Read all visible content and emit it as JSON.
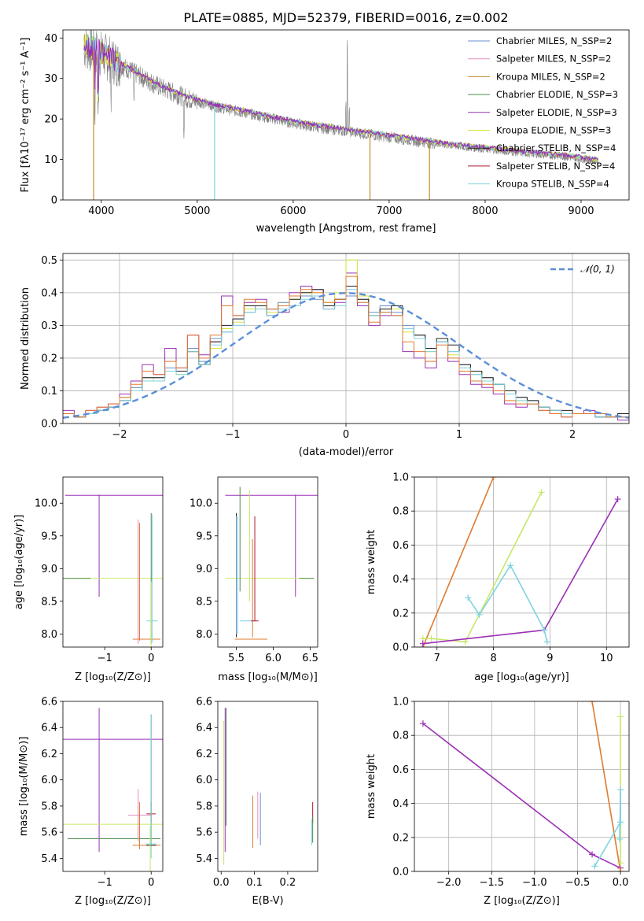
{
  "figure_title": "PLATE=0885, MJD=52379, FIBERID=0016, z=0.002",
  "colors": {
    "Chabrier MILES": "#6a8fd0",
    "Salpeter MILES": "#e38fc6",
    "Kroupa MILES": "#c8892a",
    "Chabrier ELODIE": "#4d8b4d",
    "Salpeter ELODIE": "#9b30b5",
    "Kroupa ELODIE": "#d6e33a",
    "Chabrier STELIB": "#222222",
    "Salpeter STELIB": "#b0182a",
    "Kroupa STELIB": "#7fd3e0",
    "data": "#808080",
    "normal": "#5b8fd9",
    "orange": "#e07a30",
    "lime": "#c6e86a"
  },
  "chart_data": [
    {
      "id": "spectrum",
      "type": "line",
      "xlabel": "wavelength [Angstrom, rest frame]",
      "ylabel": "Flux [fλ10⁻¹⁷ erg cm⁻² s⁻¹ A⁻¹]",
      "xlim": [
        3600,
        9500
      ],
      "ylim": [
        0,
        42
      ],
      "xticks": [
        "4000",
        "5000",
        "6000",
        "7000",
        "8000",
        "9000"
      ],
      "yticks": [
        "0",
        "10",
        "20",
        "30",
        "40"
      ],
      "legend_position": "top-right",
      "legend": [
        "Chabrier MILES, N_SSP=2",
        "Salpeter MILES, N_SSP=2",
        "Kroupa MILES, N_SSP=2",
        "Chabrier ELODIE, N_SSP=3",
        "Salpeter ELODIE, N_SSP=3",
        "Kroupa ELODIE, N_SSP=3",
        "Chabrier STELIB, N_SSP=4",
        "Salpeter STELIB, N_SSP=4",
        "Kroupa STELIB, N_SSP=4"
      ],
      "continuum": {
        "x": [
          3820,
          4000,
          4300,
          4600,
          4900,
          5200,
          5500,
          5800,
          6100,
          6400,
          6700,
          7000,
          7300,
          7600,
          8000,
          8400,
          8800,
          9180
        ],
        "y": [
          38,
          36,
          32,
          28,
          25,
          23,
          21.5,
          20,
          18.5,
          17.5,
          16.5,
          15.5,
          14.5,
          13.5,
          12.5,
          11.5,
          10.7,
          9.5
        ]
      },
      "dips": [
        {
          "x": 3920,
          "y": 0,
          "series": "Kroupa MILES"
        },
        {
          "x": 5180,
          "y": 0,
          "series": "Kroupa STELIB"
        },
        {
          "x": 6800,
          "y": 0,
          "series": "Kroupa MILES"
        },
        {
          "x": 7420,
          "y": 0,
          "series": "Kroupa MILES"
        }
      ]
    },
    {
      "id": "residuals",
      "type": "line",
      "xlabel": "(data-model)/error",
      "ylabel": "Normed distribution",
      "xlim": [
        -2.5,
        2.5
      ],
      "ylim": [
        0,
        0.52
      ],
      "xticks": [
        "−2",
        "−1",
        "0",
        "1",
        "2"
      ],
      "yticks": [
        "0.0",
        "0.1",
        "0.2",
        "0.3",
        "0.4",
        "0.5"
      ],
      "legend_position": "top-right",
      "legend": [
        "𝒩(0, 1)"
      ],
      "bin_width": 0.1,
      "series": [
        {
          "series": "Salpeter ELODIE",
          "values": [
            0.04,
            0.02,
            0.04,
            0.05,
            0.06,
            0.09,
            0.13,
            0.18,
            0.15,
            0.23,
            0.17,
            0.27,
            0.21,
            0.25,
            0.39,
            0.33,
            0.37,
            0.38,
            0.35,
            0.34,
            0.4,
            0.42,
            0.41,
            0.35,
            0.37,
            0.46,
            0.36,
            0.3,
            0.33,
            0.33,
            0.22,
            0.2,
            0.17,
            0.25,
            0.19,
            0.15,
            0.12,
            0.11,
            0.09,
            0.06,
            0.05,
            0.06,
            0.04,
            0.03,
            0.02,
            0.03,
            0.04,
            0.03,
            0.02,
            0.01
          ]
        },
        {
          "series": "Kroupa ELODIE",
          "values": [
            0.03,
            0.02,
            0.03,
            0.04,
            0.05,
            0.08,
            0.11,
            0.14,
            0.13,
            0.16,
            0.15,
            0.22,
            0.18,
            0.23,
            0.29,
            0.31,
            0.35,
            0.36,
            0.34,
            0.37,
            0.38,
            0.4,
            0.39,
            0.37,
            0.4,
            0.5,
            0.39,
            0.33,
            0.35,
            0.35,
            0.28,
            0.27,
            0.22,
            0.26,
            0.21,
            0.17,
            0.16,
            0.14,
            0.12,
            0.1,
            0.07,
            0.06,
            0.05,
            0.04,
            0.03,
            0.03,
            0.03,
            0.02,
            0.02,
            0.02
          ]
        },
        {
          "series": "Chabrier MILES",
          "values": [
            0.03,
            0.02,
            0.03,
            0.04,
            0.05,
            0.07,
            0.11,
            0.14,
            0.14,
            0.17,
            0.16,
            0.23,
            0.19,
            0.26,
            0.28,
            0.32,
            0.34,
            0.36,
            0.35,
            0.37,
            0.36,
            0.39,
            0.38,
            0.36,
            0.38,
            0.39,
            0.38,
            0.34,
            0.36,
            0.34,
            0.3,
            0.27,
            0.23,
            0.25,
            0.22,
            0.18,
            0.15,
            0.14,
            0.12,
            0.1,
            0.08,
            0.07,
            0.05,
            0.04,
            0.03,
            0.03,
            0.03,
            0.02,
            0.02,
            0.02
          ]
        },
        {
          "series": "Chabrier STELIB",
          "values": [
            0.03,
            0.02,
            0.03,
            0.04,
            0.05,
            0.07,
            0.1,
            0.14,
            0.14,
            0.16,
            0.16,
            0.22,
            0.18,
            0.25,
            0.3,
            0.32,
            0.36,
            0.36,
            0.33,
            0.36,
            0.38,
            0.4,
            0.41,
            0.36,
            0.38,
            0.42,
            0.38,
            0.33,
            0.35,
            0.36,
            0.29,
            0.27,
            0.23,
            0.26,
            0.24,
            0.18,
            0.16,
            0.14,
            0.12,
            0.1,
            0.08,
            0.07,
            0.05,
            0.04,
            0.04,
            0.03,
            0.03,
            0.02,
            0.02,
            0.03
          ]
        },
        {
          "series": "Kroupa STELIB",
          "values": [
            0.03,
            0.02,
            0.03,
            0.04,
            0.05,
            0.07,
            0.1,
            0.13,
            0.13,
            0.16,
            0.15,
            0.22,
            0.18,
            0.24,
            0.28,
            0.3,
            0.34,
            0.35,
            0.33,
            0.35,
            0.36,
            0.38,
            0.39,
            0.35,
            0.36,
            0.41,
            0.37,
            0.33,
            0.34,
            0.33,
            0.29,
            0.26,
            0.22,
            0.25,
            0.22,
            0.17,
            0.15,
            0.13,
            0.12,
            0.09,
            0.07,
            0.06,
            0.05,
            0.04,
            0.03,
            0.03,
            0.03,
            0.02,
            0.02,
            0.02
          ]
        },
        {
          "series": "orange",
          "values": [
            0.03,
            0.02,
            0.04,
            0.05,
            0.06,
            0.08,
            0.12,
            0.16,
            0.15,
            0.19,
            0.17,
            0.27,
            0.2,
            0.27,
            0.36,
            0.33,
            0.38,
            0.37,
            0.35,
            0.36,
            0.39,
            0.41,
            0.4,
            0.37,
            0.38,
            0.45,
            0.37,
            0.31,
            0.34,
            0.33,
            0.25,
            0.22,
            0.19,
            0.24,
            0.2,
            0.16,
            0.13,
            0.12,
            0.1,
            0.07,
            0.06,
            0.06,
            0.04,
            0.03,
            0.02,
            0.03,
            0.03,
            0.03,
            0.02,
            0.02
          ]
        }
      ],
      "gaussian": {
        "mu": 0,
        "sigma": 1
      }
    },
    {
      "id": "age_vs_Z",
      "type": "scatter",
      "xlabel": "Z [log₁₀(Z/Z⊙)]",
      "ylabel": "age  [log₁₀(age/yr)]",
      "xlim": [
        -1.9,
        0.25
      ],
      "ylim": [
        7.8,
        10.4
      ],
      "xticks": [
        "−1",
        "0"
      ],
      "yticks": [
        "8.0",
        "8.5",
        "9.0",
        "9.5",
        "10.0"
      ]
    },
    {
      "id": "age_vs_mass",
      "type": "scatter",
      "xlabel": "mass [log₁₀(M/M⊙)]",
      "ylabel": "",
      "xlim": [
        5.25,
        6.6
      ],
      "ylim": [
        7.8,
        10.4
      ],
      "xticks": [
        "5.5",
        "6.0",
        "6.5"
      ],
      "yticks": [
        "8.0",
        "8.5",
        "9.0",
        "9.5",
        "10.0"
      ]
    },
    {
      "id": "weight_vs_age",
      "type": "line",
      "xlabel": "age  [log₁₀(age/yr)]",
      "ylabel": "mass weight",
      "xlim": [
        6.6,
        10.4
      ],
      "ylim": [
        0,
        1.0
      ],
      "xticks": [
        "7",
        "8",
        "9",
        "10"
      ],
      "yticks": [
        "0.0",
        "0.2",
        "0.4",
        "0.6",
        "0.8",
        "1.0"
      ],
      "series": [
        {
          "series": "orange",
          "x": [
            6.75,
            8.0
          ],
          "y": [
            0.0,
            1.0
          ]
        },
        {
          "series": "lime",
          "x": [
            6.75,
            6.9,
            7.5,
            8.85
          ],
          "y": [
            0.05,
            0.05,
            0.03,
            0.91
          ]
        },
        {
          "series": "Salpeter ELODIE",
          "x": [
            6.75,
            8.9,
            10.2
          ],
          "y": [
            0.02,
            0.1,
            0.87
          ]
        },
        {
          "series": "Kroupa STELIB",
          "x": [
            7.55,
            7.75,
            8.3,
            8.9,
            8.95
          ],
          "y": [
            0.29,
            0.19,
            0.48,
            0.1,
            0.03
          ]
        }
      ]
    },
    {
      "id": "mass_vs_Z",
      "type": "scatter",
      "xlabel": "Z [log₁₀(Z/Z⊙)]",
      "ylabel": "mass [log₁₀(M/M⊙)]",
      "xlim": [
        -1.9,
        0.25
      ],
      "ylim": [
        5.3,
        6.6
      ],
      "xticks": [
        "−1",
        "0"
      ],
      "yticks": [
        "5.4",
        "5.6",
        "5.8",
        "6.0",
        "6.2",
        "6.4",
        "6.6"
      ]
    },
    {
      "id": "mass_vs_EBV",
      "type": "scatter",
      "xlabel": "E(B-V)",
      "ylabel": "",
      "xlim": [
        -0.01,
        0.29
      ],
      "ylim": [
        5.3,
        6.6
      ],
      "xticks": [
        "0.0",
        "0.1",
        "0.2"
      ],
      "yticks": [
        "5.4",
        "5.6",
        "5.8",
        "6.0",
        "6.2",
        "6.4",
        "6.6"
      ]
    },
    {
      "id": "weight_vs_Z",
      "type": "line",
      "xlabel": "Z [log₁₀(Z/Z⊙)]",
      "ylabel": "mass weight",
      "xlim": [
        -2.4,
        0.1
      ],
      "ylim": [
        0,
        1.0
      ],
      "xticks": [
        "−2.0",
        "−1.5",
        "−1.0",
        "−0.5",
        "0.0"
      ],
      "yticks": [
        "0.0",
        "0.2",
        "0.4",
        "0.6",
        "0.8",
        "1.0"
      ],
      "series": [
        {
          "series": "Salpeter ELODIE",
          "x": [
            -2.3,
            -0.33,
            0.0
          ],
          "y": [
            0.87,
            0.1,
            0.02
          ]
        },
        {
          "series": "orange",
          "x": [
            -0.33,
            0.0
          ],
          "y": [
            1.0,
            0.0
          ]
        },
        {
          "series": "lime",
          "x": [
            0.0,
            0.0
          ],
          "y": [
            0.91,
            0.05
          ]
        },
        {
          "series": "Kroupa STELIB",
          "x": [
            -0.3,
            0.0,
            0.0,
            -0.01
          ],
          "y": [
            0.03,
            0.29,
            0.48,
            0.19
          ]
        }
      ]
    }
  ]
}
